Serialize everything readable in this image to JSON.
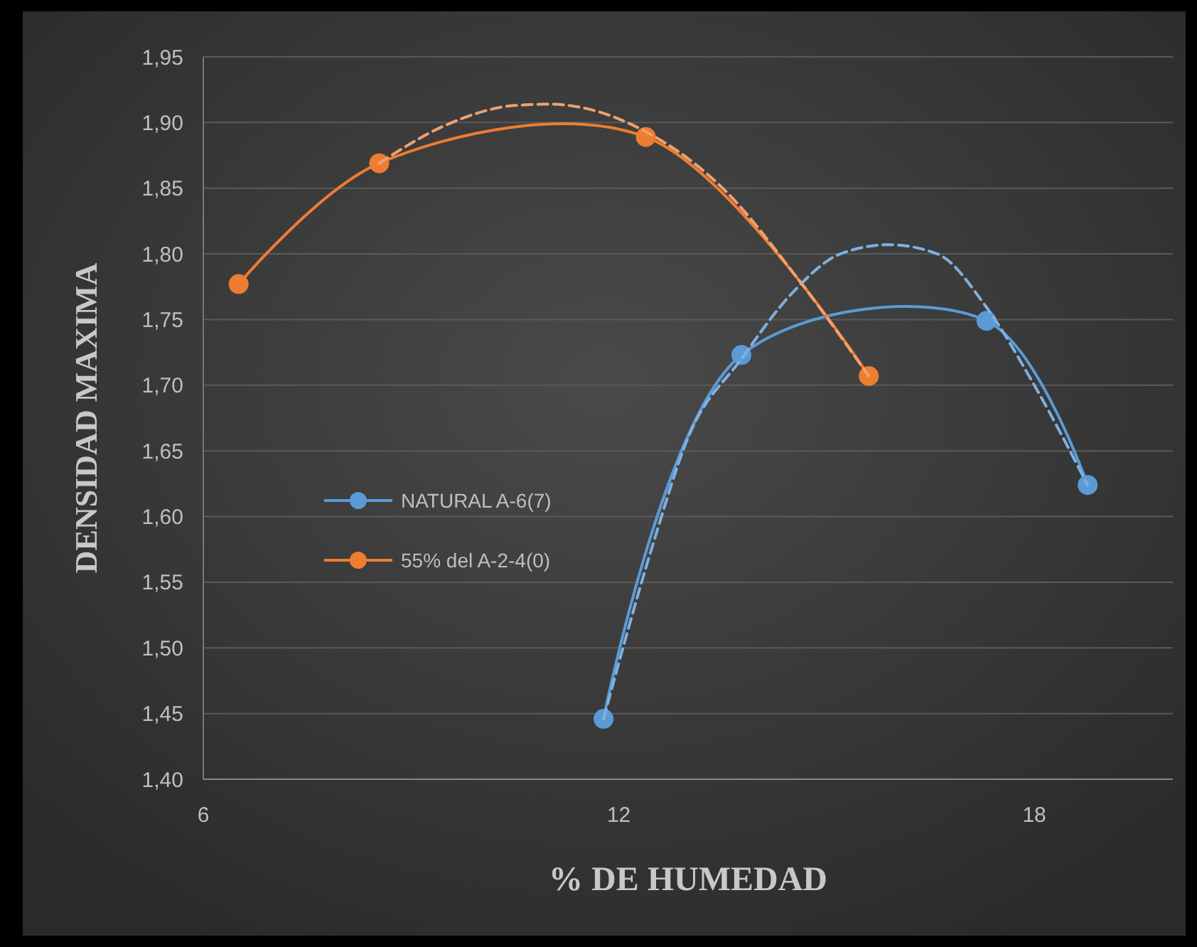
{
  "chart_data": {
    "type": "line",
    "xlabel": "% DE HUMEDAD",
    "ylabel": "DENSIDAD MAXIMA",
    "xlim": [
      6,
      20
    ],
    "xticks": [
      6,
      12,
      18
    ],
    "ylim": [
      1.4,
      1.95
    ],
    "yticks": [
      {
        "value": 1.4,
        "label": "1,40"
      },
      {
        "value": 1.45,
        "label": "1,45"
      },
      {
        "value": 1.5,
        "label": "1,50"
      },
      {
        "value": 1.55,
        "label": "1,55"
      },
      {
        "value": 1.6,
        "label": "1,60"
      },
      {
        "value": 1.65,
        "label": "1,65"
      },
      {
        "value": 1.7,
        "label": "1,70"
      },
      {
        "value": 1.75,
        "label": "1,75"
      },
      {
        "value": 1.8,
        "label": "1,80"
      },
      {
        "value": 1.85,
        "label": "1,85"
      },
      {
        "value": 1.9,
        "label": "1,90"
      },
      {
        "value": 1.95,
        "label": "1,95"
      }
    ],
    "grid": "y",
    "legend": "left",
    "marker": "circle",
    "line_style": "solid",
    "series": [
      {
        "name": "NATURAL A-6(7)",
        "color": "#5b9bd5",
        "x": [
          11.78,
          13.77,
          17.31,
          18.77
        ],
        "values": [
          1.446,
          1.723,
          1.749,
          1.624
        ]
      },
      {
        "name": "55% del A-2-4(0)",
        "color": "#ed7d31",
        "x": [
          6.51,
          8.54,
          12.39,
          15.61
        ],
        "values": [
          1.777,
          1.869,
          1.889,
          1.707
        ]
      },
      {
        "type": "line",
        "color": "#7fb0e0",
        "line_style": "dashed",
        "marker": "none",
        "x": [
          11.78,
          12.5,
          13.0,
          13.77,
          14.5,
          15.2,
          15.9,
          16.6,
          17.3,
          18.0,
          18.77
        ],
        "values": [
          1.446,
          1.58,
          1.66,
          1.72,
          1.77,
          1.8,
          1.807,
          1.8,
          1.76,
          1.7,
          1.624
        ]
      },
      {
        "type": "line",
        "color": "#f0a070",
        "line_style": "dashed",
        "marker": "none",
        "x": [
          8.54,
          9.5,
          10.5,
          11.0,
          11.5,
          12.39,
          13.5,
          14.6,
          15.61
        ],
        "values": [
          1.869,
          1.898,
          1.913,
          1.914,
          1.911,
          1.893,
          1.85,
          1.78,
          1.707
        ]
      }
    ]
  }
}
